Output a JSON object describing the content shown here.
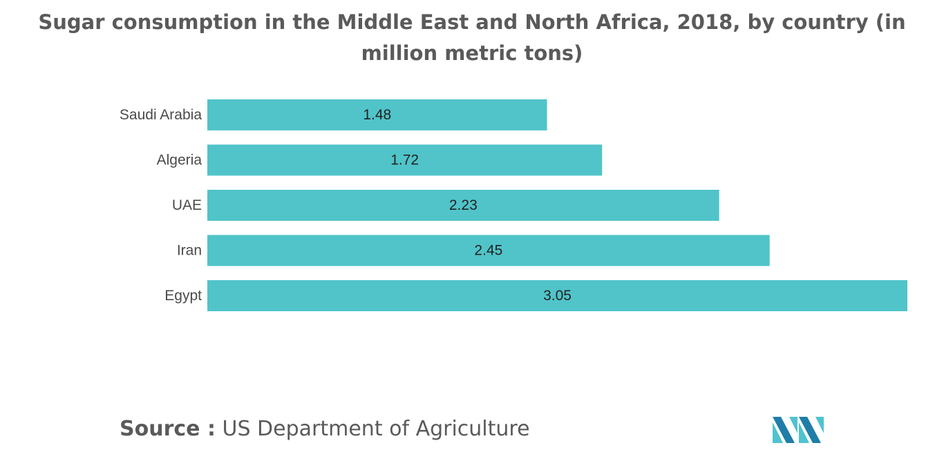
{
  "chart_data": {
    "type": "bar",
    "orientation": "horizontal",
    "title": "Sugar consumption in the Middle East and North Africa, 2018, by country (in million metric tons)",
    "categories": [
      "Saudi Arabia",
      "Algeria",
      "UAE",
      "Iran",
      "Egypt"
    ],
    "values": [
      1.48,
      1.72,
      2.23,
      2.45,
      3.05
    ],
    "data_labels": [
      "1.48",
      "1.72",
      "2.23",
      "2.45",
      "3.05"
    ],
    "xlabel": "",
    "ylabel": "",
    "xlim": [
      0,
      3.05
    ],
    "grid": false,
    "legend": "none",
    "bar_color": "#50c4c9"
  },
  "source": {
    "label": "Source :",
    "text": "US Department of Agriculture"
  },
  "logo": {
    "icon": "mordor-intelligence-logo-icon",
    "colors": [
      "#1f7ea8",
      "#4fc3cf"
    ]
  }
}
